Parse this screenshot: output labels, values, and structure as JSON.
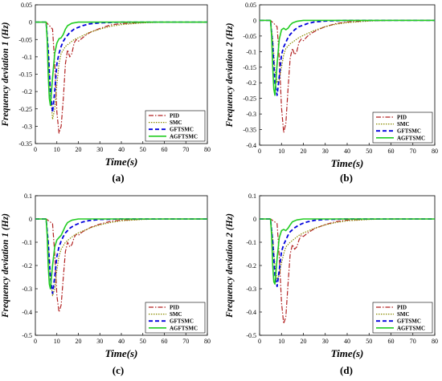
{
  "legend_labels": [
    "PID",
    "SMC",
    "GFTSMC",
    "AGFTSMC"
  ],
  "series_colors": {
    "PID": "#b22222",
    "SMC": "#8b8b00",
    "GFTSMC": "#0000dd",
    "AGFTSMC": "#22cc22"
  },
  "chart_data": [
    {
      "type": "line",
      "sublabel": "(a)",
      "xlabel": "Time(s)",
      "ylabel": "Frequency deviation 1 (Hz)",
      "xlim": [
        0,
        80
      ],
      "ylim": [
        -0.35,
        0.05
      ],
      "xticks": [
        0,
        10,
        20,
        30,
        40,
        50,
        60,
        70,
        80
      ],
      "yticks": [
        0.05,
        0,
        -0.05,
        -0.1,
        -0.15,
        -0.2,
        -0.25,
        -0.3,
        -0.35
      ],
      "ytick_labels": [
        "0.05",
        "0",
        "-0.05",
        "-0.1",
        "-0.15",
        "-0.2",
        "-0.25",
        "-0.3",
        "-0.35"
      ],
      "legend": "bottom-right",
      "series": [
        {
          "name": "PID",
          "x": [
            0,
            5,
            8,
            9,
            10,
            11,
            12,
            13,
            14,
            15,
            16,
            17,
            18,
            19,
            20,
            22,
            24,
            26,
            30,
            35,
            40,
            50,
            60,
            80
          ],
          "y": [
            0,
            0,
            -0.02,
            -0.12,
            -0.26,
            -0.32,
            -0.3,
            -0.22,
            -0.12,
            -0.08,
            -0.1,
            -0.09,
            -0.06,
            -0.05,
            -0.055,
            -0.045,
            -0.035,
            -0.028,
            -0.018,
            -0.008,
            -0.004,
            -0.001,
            0,
            0
          ]
        },
        {
          "name": "SMC",
          "x": [
            0,
            5,
            6,
            7,
            8,
            9,
            10,
            11,
            12,
            14,
            16,
            18,
            20,
            25,
            30,
            35,
            40,
            50,
            60,
            80
          ],
          "y": [
            0,
            0,
            -0.08,
            -0.2,
            -0.28,
            -0.25,
            -0.18,
            -0.12,
            -0.09,
            -0.07,
            -0.06,
            -0.05,
            -0.045,
            -0.03,
            -0.02,
            -0.012,
            -0.007,
            -0.002,
            0,
            0
          ]
        },
        {
          "name": "GFTSMC",
          "x": [
            0,
            5,
            6,
            7,
            8,
            9,
            10,
            11,
            12,
            13,
            14,
            16,
            18,
            20,
            22,
            25,
            30,
            40,
            80
          ],
          "y": [
            0,
            0,
            -0.08,
            -0.2,
            -0.26,
            -0.2,
            -0.12,
            -0.09,
            -0.07,
            -0.055,
            -0.045,
            -0.03,
            -0.02,
            -0.015,
            -0.01,
            -0.005,
            -0.002,
            0,
            0
          ]
        },
        {
          "name": "AGFTSMC",
          "x": [
            0,
            5,
            5.5,
            6,
            6.5,
            7,
            8,
            9,
            10,
            11,
            12,
            13,
            14,
            15,
            17,
            20,
            80
          ],
          "y": [
            0,
            0,
            -0.05,
            -0.15,
            -0.22,
            -0.24,
            -0.16,
            -0.09,
            -0.06,
            -0.048,
            -0.045,
            -0.035,
            -0.02,
            -0.01,
            -0.003,
            0,
            0
          ]
        }
      ]
    },
    {
      "type": "line",
      "sublabel": "(b)",
      "xlabel": "Time(s)",
      "ylabel": "Frequency deviation 2 (Hz)",
      "xlim": [
        0,
        80
      ],
      "ylim": [
        -0.4,
        0.05
      ],
      "xticks": [
        0,
        10,
        20,
        30,
        40,
        50,
        60,
        70,
        80
      ],
      "yticks": [
        0.05,
        0,
        -0.05,
        -0.1,
        -0.15,
        -0.2,
        -0.25,
        -0.3,
        -0.35,
        -0.4
      ],
      "ytick_labels": [
        "0.05",
        "0",
        "-0.05",
        "-0.1",
        "-0.15",
        "-0.2",
        "-0.25",
        "-0.3",
        "-0.35",
        "-0.4"
      ],
      "legend": "bottom-right",
      "series": [
        {
          "name": "PID",
          "x": [
            0,
            5,
            8,
            9,
            10,
            11,
            12,
            13,
            14,
            15,
            16,
            17,
            18,
            19,
            20,
            22,
            24,
            26,
            30,
            35,
            40,
            50,
            60,
            80
          ],
          "y": [
            0,
            0,
            -0.02,
            -0.12,
            -0.28,
            -0.36,
            -0.33,
            -0.22,
            -0.12,
            -0.09,
            -0.11,
            -0.1,
            -0.07,
            -0.06,
            -0.065,
            -0.05,
            -0.04,
            -0.032,
            -0.02,
            -0.01,
            -0.005,
            -0.001,
            0,
            0
          ]
        },
        {
          "name": "SMC",
          "x": [
            0,
            5,
            6,
            7,
            8,
            9,
            10,
            11,
            12,
            14,
            16,
            18,
            20,
            25,
            30,
            35,
            40,
            50,
            60,
            80
          ],
          "y": [
            0,
            0,
            -0.06,
            -0.16,
            -0.2,
            -0.19,
            -0.15,
            -0.11,
            -0.09,
            -0.075,
            -0.065,
            -0.055,
            -0.048,
            -0.032,
            -0.02,
            -0.012,
            -0.007,
            -0.002,
            0,
            0
          ]
        },
        {
          "name": "GFTSMC",
          "x": [
            0,
            5,
            6,
            7,
            8,
            9,
            10,
            11,
            12,
            13,
            14,
            16,
            18,
            20,
            22,
            25,
            30,
            40,
            80
          ],
          "y": [
            0,
            0,
            -0.08,
            -0.2,
            -0.24,
            -0.18,
            -0.11,
            -0.085,
            -0.07,
            -0.055,
            -0.045,
            -0.03,
            -0.02,
            -0.015,
            -0.01,
            -0.005,
            -0.002,
            0,
            0
          ]
        },
        {
          "name": "AGFTSMC",
          "x": [
            0,
            5,
            5.5,
            6,
            6.5,
            7,
            8,
            9,
            10,
            11,
            12,
            13,
            14,
            15,
            17,
            20,
            80
          ],
          "y": [
            0,
            0,
            -0.05,
            -0.15,
            -0.22,
            -0.24,
            -0.14,
            -0.06,
            -0.03,
            -0.025,
            -0.03,
            -0.025,
            -0.015,
            -0.008,
            -0.003,
            0,
            0
          ]
        }
      ]
    },
    {
      "type": "line",
      "sublabel": "(c)",
      "xlabel": "Time(s)",
      "ylabel": "Frequency deviation 1 (Hz)",
      "xlim": [
        0,
        80
      ],
      "ylim": [
        -0.5,
        0.1
      ],
      "xticks": [
        0,
        10,
        20,
        30,
        40,
        50,
        60,
        70,
        80
      ],
      "yticks": [
        0.1,
        0,
        -0.1,
        -0.2,
        -0.3,
        -0.4,
        -0.5
      ],
      "ytick_labels": [
        "0.1",
        "0",
        "-0.1",
        "-0.2",
        "-0.3",
        "-0.4",
        "-0.5"
      ],
      "legend": "bottom-right",
      "series": [
        {
          "name": "PID",
          "x": [
            0,
            5,
            8,
            9,
            10,
            11,
            12,
            13,
            14,
            15,
            16,
            17,
            18,
            19,
            20,
            22,
            24,
            26,
            30,
            35,
            40,
            50,
            60,
            80
          ],
          "y": [
            0,
            0,
            -0.02,
            -0.15,
            -0.33,
            -0.4,
            -0.37,
            -0.25,
            -0.14,
            -0.1,
            -0.12,
            -0.11,
            -0.08,
            -0.065,
            -0.07,
            -0.055,
            -0.045,
            -0.035,
            -0.022,
            -0.01,
            -0.005,
            -0.001,
            0,
            0
          ]
        },
        {
          "name": "SMC",
          "x": [
            0,
            5,
            6,
            7,
            8,
            9,
            10,
            11,
            12,
            14,
            16,
            18,
            20,
            25,
            30,
            35,
            40,
            50,
            60,
            80
          ],
          "y": [
            0,
            0,
            -0.1,
            -0.25,
            -0.33,
            -0.3,
            -0.22,
            -0.16,
            -0.13,
            -0.1,
            -0.085,
            -0.07,
            -0.06,
            -0.04,
            -0.025,
            -0.015,
            -0.008,
            -0.002,
            0,
            0
          ]
        },
        {
          "name": "GFTSMC",
          "x": [
            0,
            5,
            6,
            7,
            8,
            9,
            10,
            11,
            12,
            13,
            14,
            16,
            18,
            20,
            22,
            25,
            30,
            40,
            80
          ],
          "y": [
            0,
            0,
            -0.1,
            -0.25,
            -0.32,
            -0.25,
            -0.16,
            -0.12,
            -0.095,
            -0.075,
            -0.06,
            -0.04,
            -0.028,
            -0.02,
            -0.013,
            -0.007,
            -0.002,
            0,
            0
          ]
        },
        {
          "name": "AGFTSMC",
          "x": [
            0,
            5,
            5.5,
            6,
            6.5,
            7,
            8,
            9,
            10,
            11,
            12,
            13,
            14,
            15,
            17,
            20,
            80
          ],
          "y": [
            0,
            0,
            -0.07,
            -0.2,
            -0.28,
            -0.3,
            -0.2,
            -0.12,
            -0.09,
            -0.08,
            -0.07,
            -0.05,
            -0.03,
            -0.015,
            -0.005,
            0,
            0
          ]
        }
      ]
    },
    {
      "type": "line",
      "sublabel": "(d)",
      "xlabel": "Time(s)",
      "ylabel": "Frequency deviation 2 (Hz)",
      "xlim": [
        0,
        80
      ],
      "ylim": [
        -0.5,
        0.1
      ],
      "xticks": [
        0,
        10,
        20,
        30,
        40,
        50,
        60,
        70,
        80
      ],
      "yticks": [
        0.1,
        0,
        -0.1,
        -0.2,
        -0.3,
        -0.4,
        -0.5
      ],
      "ytick_labels": [
        "0.1",
        "0",
        "-0.1",
        "-0.2",
        "-0.3",
        "-0.4",
        "-0.5"
      ],
      "legend": "bottom-right",
      "series": [
        {
          "name": "PID",
          "x": [
            0,
            5,
            8,
            9,
            10,
            11,
            12,
            13,
            14,
            15,
            16,
            17,
            18,
            19,
            20,
            22,
            24,
            26,
            30,
            35,
            40,
            50,
            60,
            80
          ],
          "y": [
            0,
            0,
            -0.02,
            -0.16,
            -0.36,
            -0.45,
            -0.42,
            -0.28,
            -0.15,
            -0.11,
            -0.13,
            -0.12,
            -0.09,
            -0.07,
            -0.075,
            -0.06,
            -0.048,
            -0.038,
            -0.024,
            -0.011,
            -0.005,
            -0.001,
            0,
            0
          ]
        },
        {
          "name": "SMC",
          "x": [
            0,
            5,
            6,
            7,
            8,
            9,
            10,
            11,
            12,
            14,
            16,
            18,
            20,
            25,
            30,
            35,
            40,
            50,
            60,
            80
          ],
          "y": [
            0,
            0,
            -0.08,
            -0.2,
            -0.26,
            -0.24,
            -0.19,
            -0.15,
            -0.12,
            -0.1,
            -0.085,
            -0.07,
            -0.06,
            -0.04,
            -0.025,
            -0.015,
            -0.008,
            -0.002,
            0,
            0
          ]
        },
        {
          "name": "GFTSMC",
          "x": [
            0,
            5,
            6,
            7,
            8,
            9,
            10,
            11,
            12,
            13,
            14,
            16,
            18,
            20,
            22,
            25,
            30,
            40,
            80
          ],
          "y": [
            0,
            0,
            -0.1,
            -0.24,
            -0.29,
            -0.22,
            -0.14,
            -0.11,
            -0.09,
            -0.07,
            -0.055,
            -0.038,
            -0.026,
            -0.018,
            -0.012,
            -0.006,
            -0.002,
            0,
            0
          ]
        },
        {
          "name": "AGFTSMC",
          "x": [
            0,
            5,
            5.5,
            6,
            6.5,
            7,
            8,
            9,
            10,
            11,
            12,
            13,
            14,
            15,
            17,
            20,
            80
          ],
          "y": [
            0,
            0,
            -0.07,
            -0.2,
            -0.27,
            -0.28,
            -0.17,
            -0.08,
            -0.05,
            -0.045,
            -0.05,
            -0.04,
            -0.025,
            -0.012,
            -0.004,
            0,
            0
          ]
        }
      ]
    }
  ]
}
